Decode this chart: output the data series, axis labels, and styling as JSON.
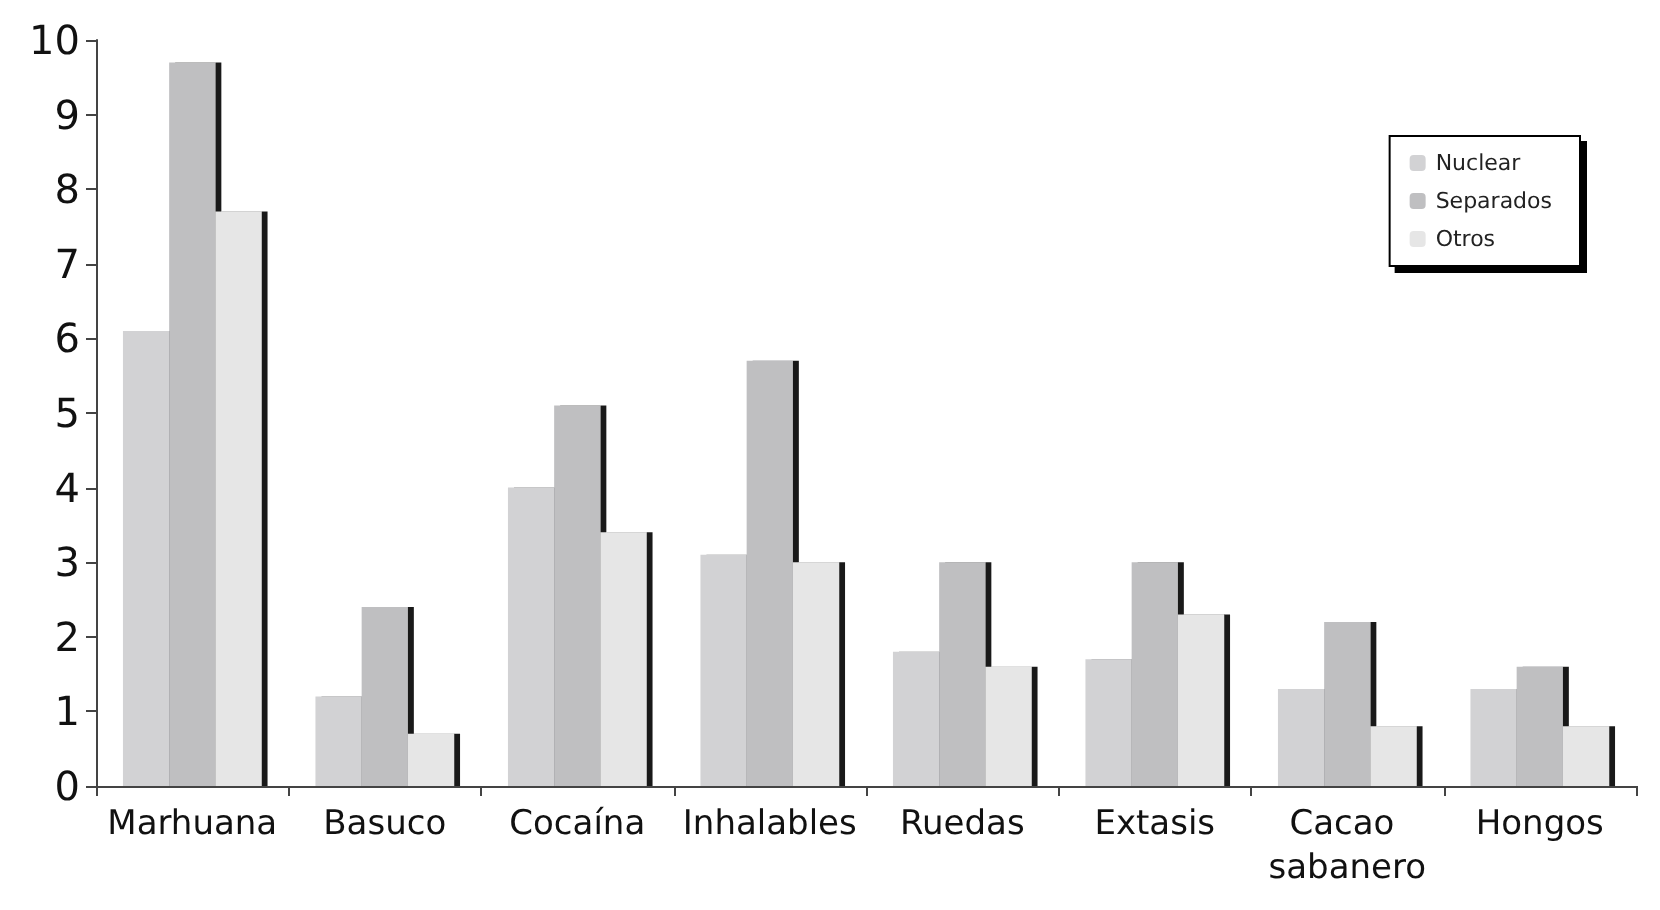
{
  "chart_data": {
    "type": "bar",
    "categories": [
      "Marhuana",
      "Basuco",
      "Cocaína",
      "Inhalables",
      "Ruedas",
      "Extasis",
      "Cacao sabanero",
      "Hongos"
    ],
    "series": [
      {
        "name": "Nuclear",
        "color": "#d2d2d4",
        "values": [
          6.1,
          1.2,
          4.0,
          3.1,
          1.8,
          1.7,
          1.3,
          1.3
        ]
      },
      {
        "name": "Separados",
        "color": "#bfbfc1",
        "values": [
          9.7,
          2.4,
          5.1,
          5.7,
          3.0,
          3.0,
          2.2,
          1.6
        ]
      },
      {
        "name": "Otros",
        "color": "#e6e6e6",
        "values": [
          7.7,
          0.7,
          3.4,
          3.0,
          1.6,
          2.3,
          0.8,
          0.8
        ]
      }
    ],
    "ylim": [
      0,
      10
    ],
    "yticks": [
      0,
      1,
      2,
      3,
      4,
      5,
      6,
      7,
      8,
      9,
      10
    ],
    "grid": false,
    "legend": "top right"
  }
}
